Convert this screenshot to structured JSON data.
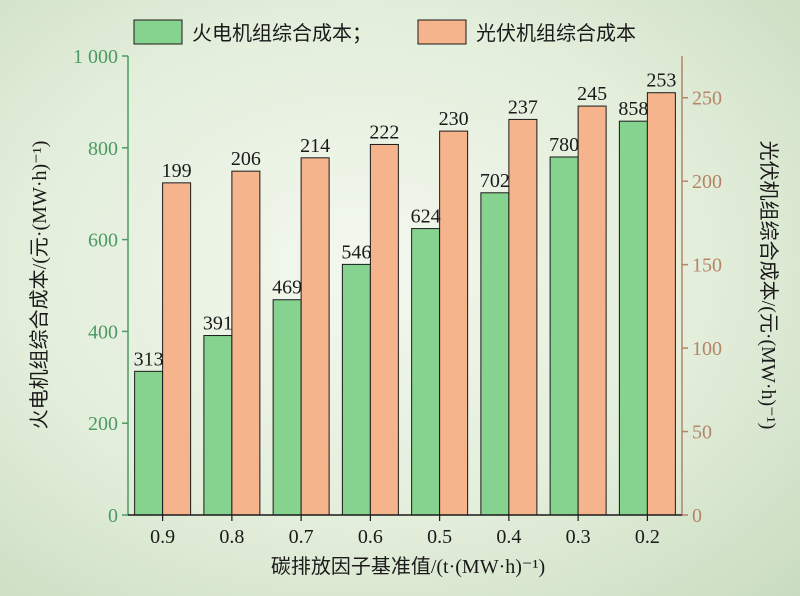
{
  "chart_data": {
    "type": "bar",
    "categories": [
      "0.9",
      "0.8",
      "0.7",
      "0.6",
      "0.5",
      "0.4",
      "0.3",
      "0.2"
    ],
    "series": [
      {
        "name": "火电机组综合成本；",
        "axis": "left",
        "color": "#86d28f",
        "values": [
          313,
          391,
          469,
          546,
          624,
          702,
          780,
          858
        ]
      },
      {
        "name": "光伏机组综合成本",
        "axis": "right",
        "color": "#f5b48c",
        "values": [
          199,
          206,
          214,
          222,
          230,
          237,
          245,
          253
        ]
      }
    ],
    "xlabel": "碳排放因子基准值/(t·(MW·h)⁻¹)",
    "ylabel_left": "火电机组综合成本/(元·(MW·h)⁻¹)",
    "ylabel_right": "光伏机组综合成本/(元·(MW·h)⁻¹)",
    "ylim_left": [
      0,
      1000
    ],
    "ylim_right": [
      0,
      275
    ],
    "yticks_left": [
      0,
      200,
      400,
      600,
      800,
      1000
    ],
    "yticks_left_labels": [
      "0",
      "200",
      "400",
      "600",
      "800",
      "1 000"
    ],
    "yticks_right": [
      0,
      50,
      100,
      150,
      200,
      250
    ],
    "left_axis_color": "#4c9a63",
    "right_axis_color": "#b58466",
    "grid": false,
    "legend_position": "top"
  }
}
